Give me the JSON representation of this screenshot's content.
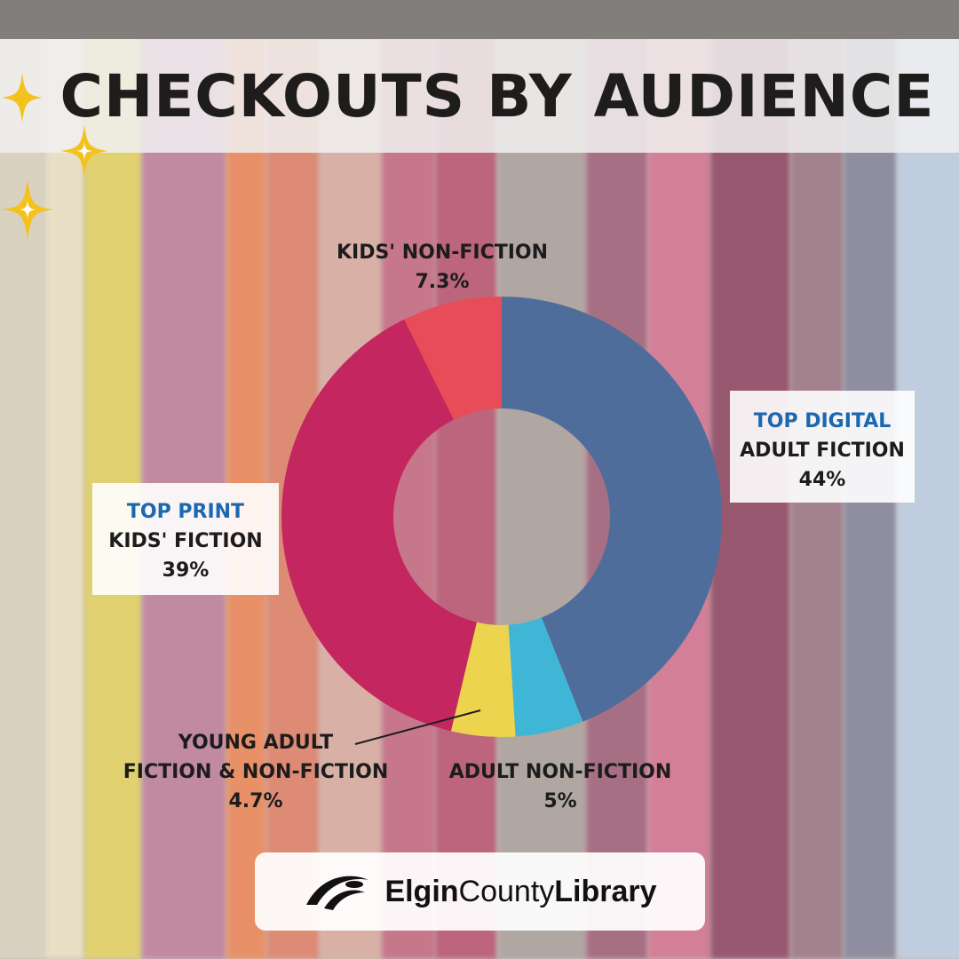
{
  "title": "CHECKOUTS BY AUDIENCE",
  "chart_data": {
    "type": "pie",
    "donut": true,
    "series": [
      {
        "name": "ADULT FICTION",
        "value": 44,
        "label": "44%",
        "color": "#4f6d9b",
        "tag": "TOP DIGITAL"
      },
      {
        "name": "ADULT NON-FICTION",
        "value": 5,
        "label": "5%",
        "color": "#40b6d6"
      },
      {
        "name": "YOUNG ADULT FICTION & NON-FICTION",
        "value": 4.7,
        "label": "4.7%",
        "color": "#ecd44f"
      },
      {
        "name": "KIDS' FICTION",
        "value": 39,
        "label": "39%",
        "color": "#c4265f",
        "tag": "TOP PRINT"
      },
      {
        "name": "KIDS' NON-FICTION",
        "value": 7.3,
        "label": "7.3%",
        "color": "#e84c58"
      }
    ]
  },
  "labels": {
    "adult_fiction": {
      "tag": "TOP DIGITAL",
      "name": "ADULT FICTION",
      "value": "44%"
    },
    "kids_fiction": {
      "tag": "TOP PRINT",
      "name": "KIDS' FICTION",
      "value": "39%"
    },
    "kids_nonfiction": {
      "name": "KIDS' NON-FICTION",
      "value": "7.3%"
    },
    "adult_nonfiction": {
      "name": "ADULT NON-FICTION",
      "value": "5%"
    },
    "young_adult": {
      "line1": "YOUNG ADULT",
      "line2": "FICTION & NON-FICTION",
      "value": "4.7%"
    }
  },
  "logo": {
    "part1": "Elgin",
    "part2": "County",
    "part3": "Library"
  },
  "colors": {
    "sparkle": "#f4c21c",
    "accent_text": "#1b67b0"
  }
}
